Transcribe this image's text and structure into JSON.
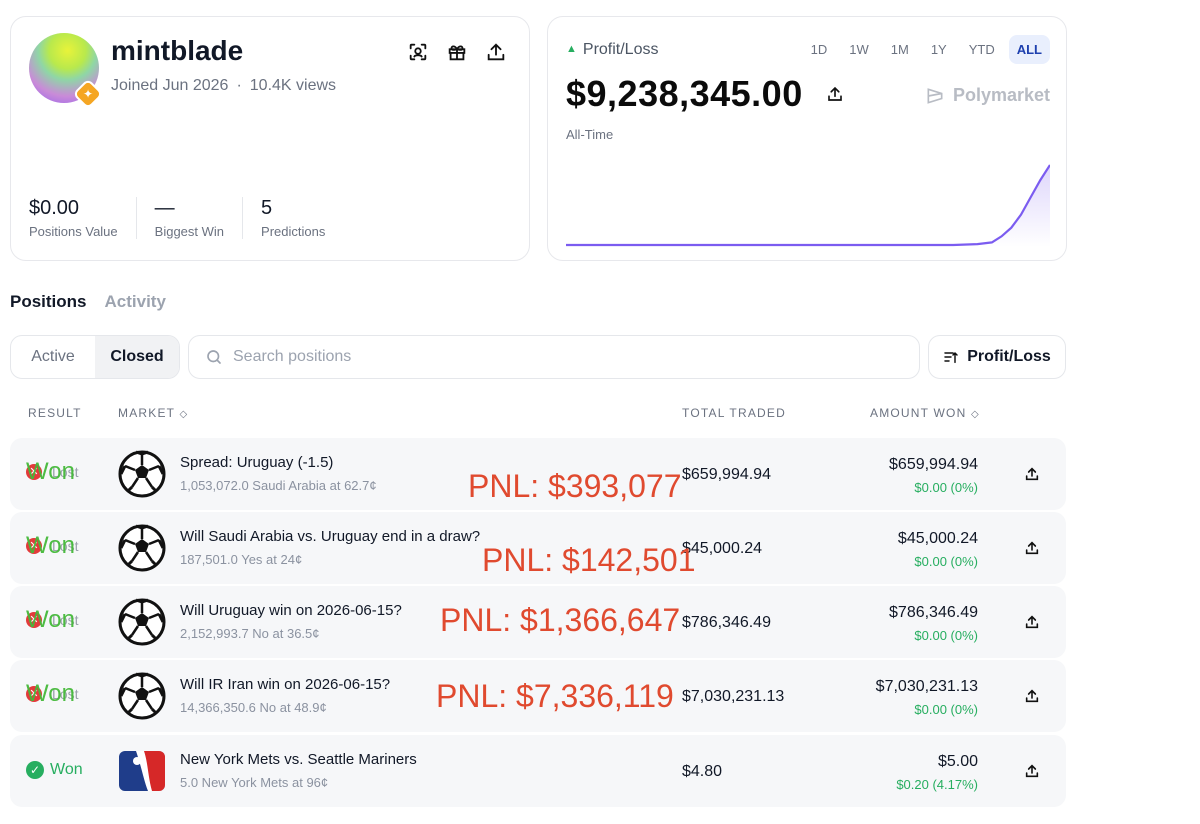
{
  "profile": {
    "username": "mintblade",
    "joined": "Joined Jun 2026",
    "views": "10.4K views",
    "stats": [
      {
        "value": "$0.00",
        "label": "Positions Value"
      },
      {
        "value": "—",
        "label": "Biggest Win"
      },
      {
        "value": "5",
        "label": "Predictions"
      }
    ],
    "icons": [
      "scan-icon",
      "gift-icon",
      "share-icon"
    ]
  },
  "pnl": {
    "label": "Profit/Loss",
    "value": "$9,238,345.00",
    "period": "All-Time",
    "brand": "Polymarket",
    "ranges": [
      "1D",
      "1W",
      "1M",
      "1Y",
      "YTD",
      "ALL"
    ],
    "active_range": "ALL",
    "accent": "#7b5cf0"
  },
  "chart_data": {
    "type": "area",
    "x": [
      0,
      10,
      20,
      30,
      40,
      50,
      60,
      70,
      80,
      85,
      88,
      90,
      92,
      94,
      96,
      98,
      100
    ],
    "values": [
      0,
      0,
      0,
      0,
      0,
      0,
      0,
      0,
      0,
      0.1,
      0.3,
      1,
      2,
      3.5,
      5.5,
      7.5,
      9.24
    ],
    "title": "",
    "xlabel": "",
    "ylabel": "",
    "grid": false
  },
  "tabs": [
    "Positions",
    "Activity"
  ],
  "active_tab": "Positions",
  "filters": {
    "segments": [
      "Active",
      "Closed"
    ],
    "active_segment": "Closed",
    "search_placeholder": "Search positions",
    "sort_label": "Profit/Loss"
  },
  "table": {
    "headers": {
      "result": "RESULT",
      "market": "MARKET",
      "traded": "TOTAL TRADED",
      "won": "AMOUNT WON"
    },
    "rows": [
      {
        "result": "Won",
        "lost_label": "Lost",
        "title": "Spread: Uruguay (-1.5)",
        "sub": "1,053,072.0 Saudi Arabia at 62.7¢",
        "traded": "$659,994.94",
        "won": "$659,994.94",
        "change": "$0.00 (0%)",
        "overlay": "PNL: $393,077",
        "icon": "soccer-ball-icon"
      },
      {
        "result": "Won",
        "lost_label": "Lost",
        "title": "Will Saudi Arabia vs. Uruguay end in a draw?",
        "sub": "187,501.0 Yes at 24¢",
        "traded": "$45,000.24",
        "won": "$45,000.24",
        "change": "$0.00 (0%)",
        "overlay": "PNL: $142,501",
        "icon": "soccer-ball-icon"
      },
      {
        "result": "Won",
        "lost_label": "Lost",
        "title": "Will Uruguay win on 2026-06-15?",
        "sub": "2,152,993.7 No at 36.5¢",
        "traded": "$786,346.49",
        "won": "$786,346.49",
        "change": "$0.00 (0%)",
        "overlay": "PNL: $1,366,647",
        "icon": "soccer-ball-icon"
      },
      {
        "result": "Won",
        "lost_label": "Lost",
        "title": "Will IR Iran win on 2026-06-15?",
        "sub": "14,366,350.6 No at 48.9¢",
        "traded": "$7,030,231.13",
        "won": "$7,030,231.13",
        "change": "$0.00 (0%)",
        "overlay": "PNL: $7,336,119",
        "icon": "soccer-ball-icon"
      },
      {
        "result": "Won",
        "title": "New York Mets vs. Seattle Mariners",
        "sub": "5.0 New York Mets at 96¢",
        "traded": "$4.80",
        "won": "$5.00",
        "change": "$0.20 (4.17%)",
        "icon": "mlb-logo-icon"
      }
    ]
  }
}
